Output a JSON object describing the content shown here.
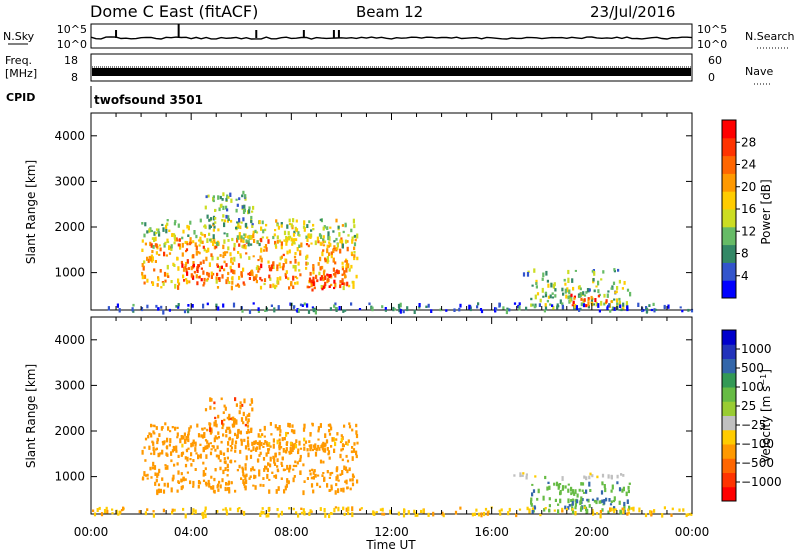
{
  "header": {
    "station": "Dome C East (fitACF)",
    "beam": "Beam 12",
    "date": "23/Jul/2016"
  },
  "strips": {
    "nsky": {
      "label": "N.Sky",
      "ticks": [
        "10^5",
        "10^0"
      ]
    },
    "nsearch": {
      "label": "N.Search",
      "ticks": [
        "10^5",
        "10^0"
      ]
    },
    "freq": {
      "label_line1": "Freq.",
      "label_line2": "[MHz]",
      "ticks": [
        "18",
        "8"
      ]
    },
    "nave": {
      "label": "Nave",
      "ticks": [
        "60",
        "0"
      ]
    },
    "cpid": {
      "label": "CPID",
      "value": "twofsound 3501"
    }
  },
  "colors": {
    "power": [
      "#0000ff",
      "#3355cc",
      "#338866",
      "#66bb66",
      "#ccdd22",
      "#ffcc00",
      "#ff9900",
      "#ff6600",
      "#ff3300",
      "#ff0000"
    ],
    "velocity": [
      "#ff0000",
      "#ff3300",
      "#ff6600",
      "#ff9900",
      "#ffcc00",
      "#c0c0c0",
      "#99cc33",
      "#66bb44",
      "#339955",
      "#3366aa",
      "#2233bb",
      "#0000cc"
    ],
    "ground": "#c0c0c0"
  },
  "chart_data": [
    {
      "type": "heatmap",
      "panel": "power",
      "ylabel": "Slant Range [km]",
      "xlabel": "Time UT",
      "x_ticks": [
        "00:00",
        "04:00",
        "08:00",
        "12:00",
        "16:00",
        "20:00",
        "00:00"
      ],
      "x_range_hours": [
        0,
        24
      ],
      "y_ticks": [
        1000,
        2000,
        3000,
        4000
      ],
      "ylim": [
        180,
        4500
      ],
      "colorbar": {
        "label": "Power [dB]",
        "ticks": [
          4,
          8,
          12,
          16,
          20,
          24,
          28
        ],
        "range": [
          0,
          32
        ]
      },
      "regions": [
        {
          "t0": 2.0,
          "t1": 10.6,
          "r0": 700,
          "r1": 1800,
          "value": 21
        },
        {
          "t0": 3.6,
          "t1": 5.2,
          "r0": 850,
          "r1": 1300,
          "value": 26
        },
        {
          "t0": 6.0,
          "t1": 7.2,
          "r0": 850,
          "r1": 1200,
          "value": 25
        },
        {
          "t0": 8.6,
          "t1": 10.2,
          "r0": 650,
          "r1": 1100,
          "value": 27
        },
        {
          "t0": 2.0,
          "t1": 10.6,
          "r0": 1600,
          "r1": 2200,
          "value": 14
        },
        {
          "t0": 4.5,
          "t1": 6.5,
          "r0": 2000,
          "r1": 2800,
          "value": 10
        },
        {
          "t0": 16.8,
          "t1": 18.2,
          "r0": 1000,
          "r1": 1100,
          "value": 10
        },
        {
          "t0": 18.6,
          "t1": 21.6,
          "r0": 1000,
          "r1": 1100,
          "value": 10
        },
        {
          "t0": 17.5,
          "t1": 21.5,
          "r0": 250,
          "r1": 900,
          "value": 12
        },
        {
          "t0": 19.0,
          "t1": 20.8,
          "r0": 300,
          "r1": 550,
          "value": 24
        },
        {
          "t0": 0.0,
          "t1": 24.0,
          "r0": 180,
          "r1": 350,
          "value": 6
        }
      ]
    },
    {
      "type": "heatmap",
      "panel": "velocity",
      "ylabel": "Slant Range [km]",
      "xlabel": "Time UT",
      "x_ticks": [
        "00:00",
        "04:00",
        "08:00",
        "12:00",
        "16:00",
        "20:00",
        "00:00"
      ],
      "x_range_hours": [
        0,
        24
      ],
      "y_ticks": [
        1000,
        2000,
        3000,
        4000
      ],
      "ylim": [
        180,
        4500
      ],
      "colorbar": {
        "label": "Velocity [m s^-1]",
        "ticks": [
          "1000",
          "500",
          "100",
          "25",
          "-25",
          "-100",
          "-500",
          "-1000"
        ]
      },
      "regions": [
        {
          "t0": 2.0,
          "t1": 10.6,
          "r0": 700,
          "r1": 1800,
          "value": -300
        },
        {
          "t0": 2.0,
          "t1": 10.6,
          "r0": 1600,
          "r1": 2200,
          "value": -150
        },
        {
          "t0": 4.5,
          "t1": 6.5,
          "r0": 2000,
          "r1": 2800,
          "value": -400
        },
        {
          "t0": 16.8,
          "t1": 18.2,
          "r0": 1000,
          "r1": 1100,
          "value": 0
        },
        {
          "t0": 18.6,
          "t1": 21.6,
          "r0": 1000,
          "r1": 1100,
          "value": 0
        },
        {
          "t0": 17.5,
          "t1": 21.5,
          "r0": 250,
          "r1": 900,
          "value": 80
        },
        {
          "t0": 19.0,
          "t1": 20.8,
          "r0": 300,
          "r1": 550,
          "value": 120
        },
        {
          "t0": 0.0,
          "t1": 24.0,
          "r0": 180,
          "r1": 350,
          "value": -80
        }
      ]
    }
  ]
}
